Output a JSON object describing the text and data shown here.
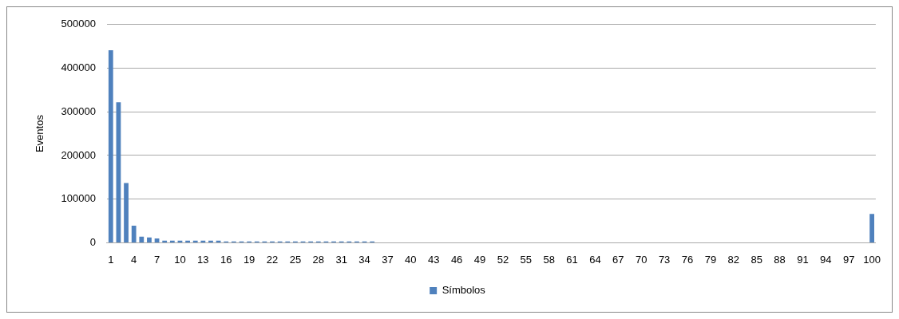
{
  "chart_data": {
    "type": "bar",
    "ylabel": "Eventos",
    "categories": [
      "1",
      null,
      null,
      "4",
      null,
      null,
      "7",
      null,
      null,
      "10",
      null,
      null,
      "13",
      null,
      null,
      "16",
      null,
      null,
      "19",
      null,
      null,
      "22",
      null,
      null,
      "25",
      null,
      null,
      "28",
      null,
      null,
      "31",
      null,
      null,
      "34",
      null,
      null,
      "37",
      null,
      null,
      "40",
      null,
      null,
      "43",
      null,
      null,
      "46",
      null,
      null,
      "49",
      null,
      null,
      "52",
      null,
      null,
      "55",
      null,
      null,
      "58",
      null,
      null,
      "61",
      null,
      null,
      "64",
      null,
      null,
      "67",
      null,
      null,
      "70",
      null,
      null,
      "73",
      null,
      null,
      "76",
      null,
      null,
      "79",
      null,
      null,
      "82",
      null,
      null,
      "85",
      null,
      null,
      "88",
      null,
      null,
      "91",
      null,
      null,
      "94",
      null,
      null,
      "97",
      null,
      null,
      "100"
    ],
    "series": [
      {
        "name": "Símbolos",
        "color": "#4f81bd",
        "values": [
          441000,
          322000,
          137000,
          39000,
          14000,
          12000,
          10000,
          5000,
          5000,
          5000,
          5000,
          5000,
          5000,
          5000,
          5000,
          3000,
          3000,
          3000,
          3000,
          3000,
          3000,
          3000,
          3000,
          3000,
          3000,
          3000,
          3000,
          3000,
          3000,
          3000,
          3000,
          3000,
          3000,
          3000,
          3000,
          0,
          0,
          0,
          0,
          0,
          0,
          0,
          0,
          0,
          0,
          0,
          0,
          0,
          0,
          0,
          0,
          0,
          0,
          0,
          0,
          0,
          0,
          0,
          0,
          0,
          0,
          0,
          0,
          0,
          0,
          0,
          0,
          0,
          0,
          0,
          0,
          0,
          0,
          0,
          0,
          0,
          0,
          0,
          0,
          0,
          0,
          0,
          0,
          0,
          0,
          0,
          0,
          0,
          0,
          0,
          0,
          0,
          0,
          0,
          0,
          0,
          0,
          0,
          0,
          66000
        ]
      }
    ],
    "ylim": [
      0,
      500000
    ],
    "yticks": [
      0,
      100000,
      200000,
      300000,
      400000,
      500000
    ],
    "grid": "y",
    "legend": "bottom"
  }
}
